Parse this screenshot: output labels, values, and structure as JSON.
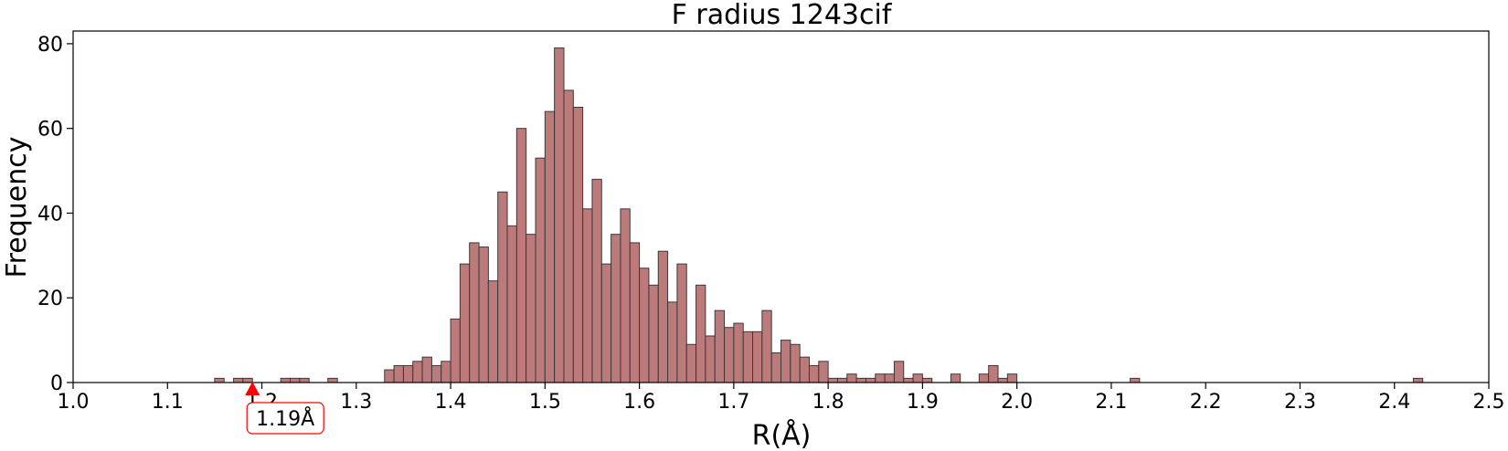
{
  "chart_data": {
    "type": "bar",
    "title": "F radius  1243cif",
    "xlabel": "R(Å)",
    "ylabel": "Frequency",
    "xlim": [
      1.0,
      2.5
    ],
    "ylim": [
      0,
      83
    ],
    "grid": false,
    "bin_width": 0.01,
    "bar_color": "#bc7a7a",
    "edge_color": "#3a3a3a",
    "x_ticks": [
      1.0,
      1.1,
      1.2,
      1.3,
      1.4,
      1.5,
      1.6,
      1.7,
      1.8,
      1.9,
      2.0,
      2.1,
      2.2,
      2.3,
      2.4,
      2.5
    ],
    "x_tick_labels": [
      "1.0",
      "1.1",
      "1.2",
      "1.3",
      "1.4",
      "1.5",
      "1.6",
      "1.7",
      "1.8",
      "1.9",
      "2.0",
      "2.1",
      "2.2",
      "2.3",
      "2.4",
      "2.5"
    ],
    "y_ticks": [
      0,
      20,
      40,
      60,
      80
    ],
    "y_tick_labels": [
      "0",
      "20",
      "40",
      "60",
      "80"
    ],
    "bins": [
      {
        "x": 1.15,
        "value": 1
      },
      {
        "x": 1.17,
        "value": 1
      },
      {
        "x": 1.18,
        "value": 1
      },
      {
        "x": 1.22,
        "value": 1
      },
      {
        "x": 1.23,
        "value": 1
      },
      {
        "x": 1.24,
        "value": 1
      },
      {
        "x": 1.27,
        "value": 1
      },
      {
        "x": 1.33,
        "value": 3
      },
      {
        "x": 1.34,
        "value": 4
      },
      {
        "x": 1.35,
        "value": 4
      },
      {
        "x": 1.36,
        "value": 5
      },
      {
        "x": 1.37,
        "value": 6
      },
      {
        "x": 1.38,
        "value": 4
      },
      {
        "x": 1.39,
        "value": 5
      },
      {
        "x": 1.4,
        "value": 15
      },
      {
        "x": 1.41,
        "value": 28
      },
      {
        "x": 1.42,
        "value": 33
      },
      {
        "x": 1.43,
        "value": 32
      },
      {
        "x": 1.44,
        "value": 24
      },
      {
        "x": 1.45,
        "value": 45
      },
      {
        "x": 1.46,
        "value": 37
      },
      {
        "x": 1.47,
        "value": 60
      },
      {
        "x": 1.48,
        "value": 35
      },
      {
        "x": 1.49,
        "value": 53
      },
      {
        "x": 1.5,
        "value": 64
      },
      {
        "x": 1.51,
        "value": 79
      },
      {
        "x": 1.52,
        "value": 69
      },
      {
        "x": 1.53,
        "value": 65
      },
      {
        "x": 1.54,
        "value": 41
      },
      {
        "x": 1.55,
        "value": 48
      },
      {
        "x": 1.56,
        "value": 28
      },
      {
        "x": 1.57,
        "value": 35
      },
      {
        "x": 1.58,
        "value": 41
      },
      {
        "x": 1.59,
        "value": 33
      },
      {
        "x": 1.6,
        "value": 27
      },
      {
        "x": 1.61,
        "value": 23
      },
      {
        "x": 1.62,
        "value": 31
      },
      {
        "x": 1.63,
        "value": 19
      },
      {
        "x": 1.64,
        "value": 28
      },
      {
        "x": 1.65,
        "value": 9
      },
      {
        "x": 1.66,
        "value": 23
      },
      {
        "x": 1.67,
        "value": 11
      },
      {
        "x": 1.68,
        "value": 17
      },
      {
        "x": 1.69,
        "value": 13
      },
      {
        "x": 1.7,
        "value": 14
      },
      {
        "x": 1.71,
        "value": 12
      },
      {
        "x": 1.72,
        "value": 12
      },
      {
        "x": 1.73,
        "value": 17
      },
      {
        "x": 1.74,
        "value": 7
      },
      {
        "x": 1.75,
        "value": 10
      },
      {
        "x": 1.76,
        "value": 9
      },
      {
        "x": 1.77,
        "value": 6
      },
      {
        "x": 1.78,
        "value": 4
      },
      {
        "x": 1.79,
        "value": 5
      },
      {
        "x": 1.8,
        "value": 1
      },
      {
        "x": 1.81,
        "value": 1
      },
      {
        "x": 1.82,
        "value": 2
      },
      {
        "x": 1.83,
        "value": 1
      },
      {
        "x": 1.84,
        "value": 1
      },
      {
        "x": 1.85,
        "value": 2
      },
      {
        "x": 1.86,
        "value": 2
      },
      {
        "x": 1.87,
        "value": 5
      },
      {
        "x": 1.88,
        "value": 1
      },
      {
        "x": 1.89,
        "value": 2
      },
      {
        "x": 1.9,
        "value": 1
      },
      {
        "x": 1.93,
        "value": 2
      },
      {
        "x": 1.96,
        "value": 2
      },
      {
        "x": 1.97,
        "value": 4
      },
      {
        "x": 1.98,
        "value": 1
      },
      {
        "x": 1.99,
        "value": 2
      },
      {
        "x": 2.12,
        "value": 1
      },
      {
        "x": 2.42,
        "value": 1
      }
    ],
    "annotation": {
      "x": 1.19,
      "label": "1.19Å",
      "marker_color": "#ff0000",
      "box_edge_color": "#ff0000"
    }
  }
}
